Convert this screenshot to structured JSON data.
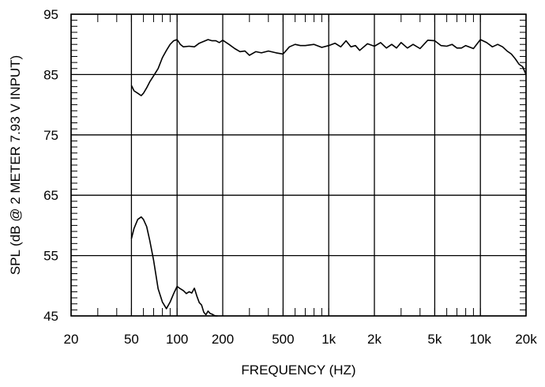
{
  "chart_data": {
    "type": "line",
    "title": "",
    "xlabel": "FREQUENCY  (HZ)",
    "ylabel": "SPL (dB @ 2 METER 7.93 V  INPUT)",
    "x_scale": "log",
    "xlim": [
      20,
      20000
    ],
    "ylim": [
      45,
      95
    ],
    "grid": true,
    "x_ticks": [
      {
        "value": 20,
        "label": "20"
      },
      {
        "value": 50,
        "label": "50"
      },
      {
        "value": 100,
        "label": "100"
      },
      {
        "value": 200,
        "label": "200"
      },
      {
        "value": 500,
        "label": "500"
      },
      {
        "value": 1000,
        "label": "1k"
      },
      {
        "value": 2000,
        "label": "2k"
      },
      {
        "value": 5000,
        "label": "5k"
      },
      {
        "value": 10000,
        "label": "10k"
      },
      {
        "value": 20000,
        "label": "20k"
      }
    ],
    "y_ticks": [
      {
        "value": 95,
        "label": "95"
      },
      {
        "value": 85,
        "label": "85"
      },
      {
        "value": 75,
        "label": "75"
      },
      {
        "value": 65,
        "label": "65"
      },
      {
        "value": 55,
        "label": "55"
      },
      {
        "value": 45,
        "label": "45"
      }
    ],
    "series": [
      {
        "x": [
          50,
          52,
          55,
          58,
          60,
          63,
          66,
          70,
          75,
          80,
          85,
          90,
          95,
          100,
          105,
          110,
          120,
          130,
          140,
          150,
          160,
          170,
          180,
          190,
          200,
          220,
          240,
          260,
          280,
          300,
          330,
          360,
          400,
          450,
          500,
          550,
          600,
          650,
          700,
          800,
          900,
          1000,
          1100,
          1200,
          1300,
          1400,
          1500,
          1600,
          1800,
          2000,
          2200,
          2400,
          2600,
          2800,
          3000,
          3300,
          3600,
          4000,
          4500,
          5000,
          5500,
          6000,
          6500,
          7000,
          7500,
          8000,
          9000,
          10000,
          11000,
          12000,
          13000,
          14000,
          15000,
          16000,
          17000,
          18000,
          19000,
          20000
        ],
        "values": [
          83.2,
          82.3,
          81.9,
          81.5,
          81.9,
          82.8,
          83.8,
          84.8,
          86.0,
          87.8,
          89.0,
          90.0,
          90.6,
          90.8,
          90.0,
          89.6,
          89.7,
          89.6,
          90.2,
          90.5,
          90.8,
          90.6,
          90.6,
          90.3,
          90.7,
          90.0,
          89.3,
          88.8,
          88.9,
          88.2,
          88.8,
          88.6,
          88.9,
          88.6,
          88.4,
          89.6,
          90.0,
          89.8,
          89.8,
          90.0,
          89.5,
          89.8,
          90.2,
          89.6,
          90.6,
          89.6,
          89.8,
          89.0,
          90.1,
          89.7,
          90.3,
          89.4,
          90.0,
          89.4,
          90.3,
          89.4,
          90.0,
          89.3,
          90.7,
          90.6,
          89.8,
          89.7,
          90.0,
          89.4,
          89.4,
          89.8,
          89.3,
          90.8,
          90.3,
          89.6,
          90.0,
          89.6,
          88.9,
          88.4,
          87.6,
          86.7,
          86.3,
          85.0
        ]
      },
      {
        "x": [
          50,
          52,
          55,
          58,
          60,
          63,
          66,
          70,
          75,
          80,
          85,
          90,
          95,
          100,
          105,
          110,
          115,
          120,
          125,
          130,
          135,
          140,
          145,
          150,
          155,
          160,
          165,
          170,
          175,
          180,
          185
        ],
        "values": [
          57.8,
          59.5,
          61.0,
          61.4,
          61.0,
          59.8,
          57.5,
          54.2,
          49.5,
          47.3,
          46.2,
          47.3,
          48.7,
          49.9,
          49.5,
          49.2,
          48.7,
          49.0,
          48.8,
          49.6,
          48.3,
          47.2,
          46.8,
          45.6,
          45.2,
          45.8,
          45.4,
          45.3,
          45.1,
          45.0,
          45.0
        ]
      }
    ]
  }
}
